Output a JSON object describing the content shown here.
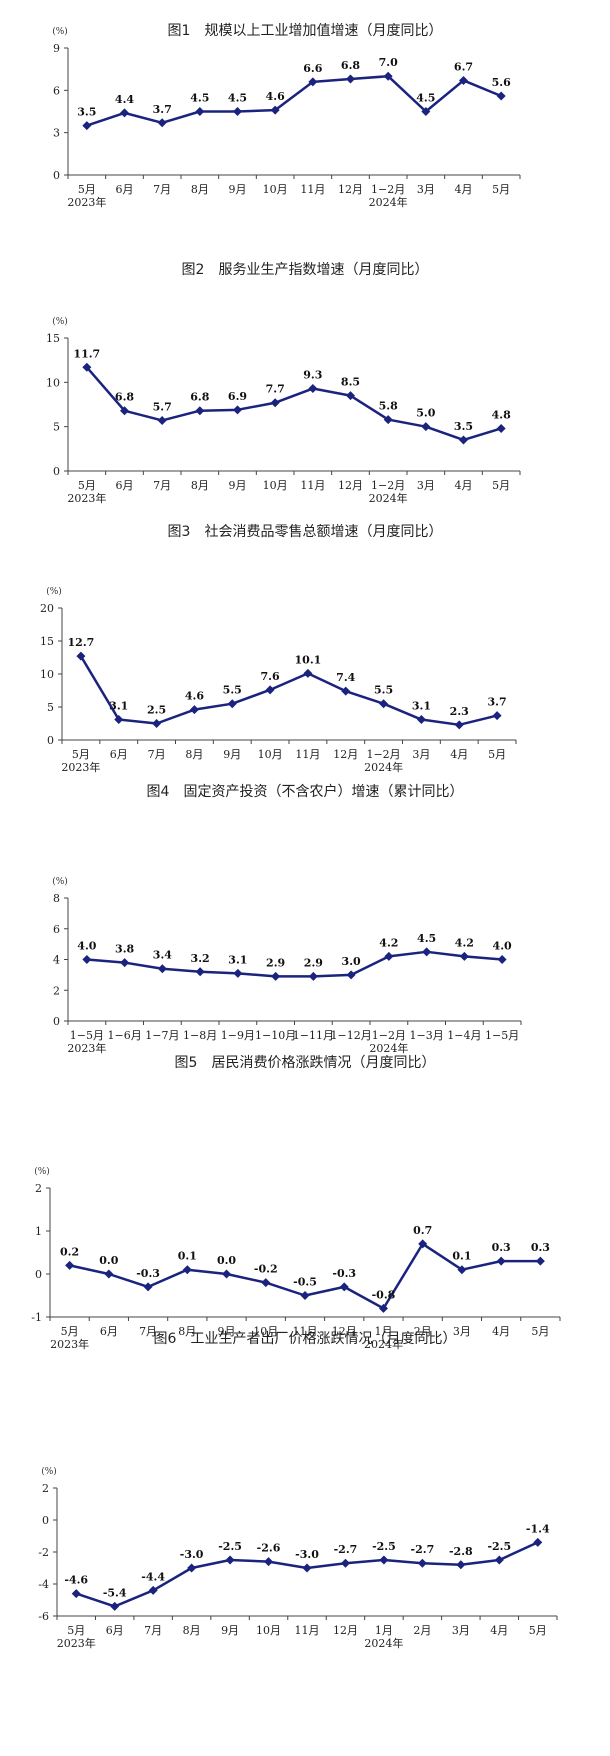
{
  "chart_data": [
    {
      "type": "line",
      "title": "图1　规模以上工业增加值增速（月度同比）",
      "unit": "(%)",
      "categories": [
        "5月",
        "6月",
        "7月",
        "8月",
        "9月",
        "10月",
        "11月",
        "12月",
        "1−2月",
        "3月",
        "4月",
        "5月"
      ],
      "year_labels": [
        {
          "text": "2023年",
          "category_index": 0
        },
        {
          "text": "2024年",
          "category_index": 8
        }
      ],
      "values": [
        3.5,
        4.4,
        3.7,
        4.5,
        4.5,
        4.6,
        6.6,
        6.8,
        7.0,
        4.5,
        6.7,
        5.6
      ],
      "value_labels": [
        "3.5",
        "4.4",
        "3.7",
        "4.5",
        "4.5",
        "4.6",
        "6.6",
        "6.8",
        "7.0",
        "4.5",
        "6.7",
        "5.6"
      ],
      "yticks": [
        0,
        3,
        6,
        9
      ],
      "ylim": [
        0,
        9
      ],
      "color": "#1a237e"
    },
    {
      "type": "line",
      "title": "图2　服务业生产指数增速（月度同比）",
      "unit": "(%)",
      "categories": [
        "5月",
        "6月",
        "7月",
        "8月",
        "9月",
        "10月",
        "11月",
        "12月",
        "1−2月",
        "3月",
        "4月",
        "5月"
      ],
      "year_labels": [
        {
          "text": "2023年",
          "category_index": 0
        },
        {
          "text": "2024年",
          "category_index": 8
        }
      ],
      "values": [
        11.7,
        6.8,
        5.7,
        6.8,
        6.9,
        7.7,
        9.3,
        8.5,
        5.8,
        5.0,
        3.5,
        4.8
      ],
      "value_labels": [
        "11.7",
        "6.8",
        "5.7",
        "6.8",
        "6.9",
        "7.7",
        "9.3",
        "8.5",
        "5.8",
        "5.0",
        "3.5",
        "4.8"
      ],
      "yticks": [
        0,
        5,
        10,
        15
      ],
      "ylim": [
        0,
        15
      ],
      "color": "#1a237e"
    },
    {
      "type": "line",
      "title": "图3　社会消费品零售总额增速（月度同比）",
      "unit": "(%)",
      "categories": [
        "5月",
        "6月",
        "7月",
        "8月",
        "9月",
        "10月",
        "11月",
        "12月",
        "1−2月",
        "3月",
        "4月",
        "5月"
      ],
      "year_labels": [
        {
          "text": "2023年",
          "category_index": 0
        },
        {
          "text": "2024年",
          "category_index": 8
        }
      ],
      "values": [
        12.7,
        3.1,
        2.5,
        4.6,
        5.5,
        7.6,
        10.1,
        7.4,
        5.5,
        3.1,
        2.3,
        3.7
      ],
      "value_labels": [
        "12.7",
        "3.1",
        "2.5",
        "4.6",
        "5.5",
        "7.6",
        "10.1",
        "7.4",
        "5.5",
        "3.1",
        "2.3",
        "3.7"
      ],
      "yticks": [
        0,
        5,
        10,
        15,
        20
      ],
      "ylim": [
        0,
        20
      ],
      "color": "#1a237e"
    },
    {
      "type": "line",
      "title": "图4　固定资产投资（不含农户）增速（累计同比）",
      "unit": "(%)",
      "categories": [
        "1−5月",
        "1−6月",
        "1−7月",
        "1−8月",
        "1−9月",
        "1−10月",
        "1−11月",
        "1−12月",
        "1−2月",
        "1−3月",
        "1−4月",
        "1−5月"
      ],
      "year_labels": [
        {
          "text": "2023年",
          "category_index": 0
        },
        {
          "text": "2024年",
          "category_index": 8
        }
      ],
      "values": [
        4.0,
        3.8,
        3.4,
        3.2,
        3.1,
        2.9,
        2.9,
        3.0,
        4.2,
        4.5,
        4.2,
        4.0
      ],
      "value_labels": [
        "4.0",
        "3.8",
        "3.4",
        "3.2",
        "3.1",
        "2.9",
        "2.9",
        "3.0",
        "4.2",
        "4.5",
        "4.2",
        "4.0"
      ],
      "yticks": [
        0,
        2,
        4,
        6,
        8
      ],
      "ylim": [
        0,
        8
      ],
      "color": "#1a237e"
    },
    {
      "type": "line",
      "title": "图5　居民消费价格涨跌情况（月度同比）",
      "unit": "(%)",
      "categories": [
        "5月",
        "6月",
        "7月",
        "8月",
        "9月",
        "10月",
        "11月",
        "12月",
        "1月",
        "2月",
        "3月",
        "4月",
        "5月"
      ],
      "year_labels": [
        {
          "text": "2023年",
          "category_index": 0
        },
        {
          "text": "2024年",
          "category_index": 8
        }
      ],
      "values": [
        0.2,
        0.0,
        -0.3,
        0.1,
        0.0,
        -0.2,
        -0.5,
        -0.3,
        -0.8,
        0.7,
        0.1,
        0.3,
        0.3
      ],
      "value_labels": [
        "0.2",
        "0.0",
        "-0.3",
        "0.1",
        "0.0",
        "-0.2",
        "-0.5",
        "-0.3",
        "-0.8",
        "0.7",
        "0.1",
        "0.3",
        "0.3"
      ],
      "yticks": [
        -1,
        0,
        1,
        2
      ],
      "ylim": [
        -1,
        2
      ],
      "color": "#1a237e"
    },
    {
      "type": "line",
      "title": "图6　工业生产者出厂价格涨跌情况（月度同比）",
      "unit": "(%)",
      "categories": [
        "5月",
        "6月",
        "7月",
        "8月",
        "9月",
        "10月",
        "11月",
        "12月",
        "1月",
        "2月",
        "3月",
        "4月",
        "5月"
      ],
      "year_labels": [
        {
          "text": "2023年",
          "category_index": 0
        },
        {
          "text": "2024年",
          "category_index": 8
        }
      ],
      "values": [
        -4.6,
        -5.4,
        -4.4,
        -3.0,
        -2.5,
        -2.6,
        -3.0,
        -2.7,
        -2.5,
        -2.7,
        -2.8,
        -2.5,
        -1.4
      ],
      "value_labels": [
        "-4.6",
        "-5.4",
        "-4.4",
        "-3.0",
        "-2.5",
        "-2.6",
        "-3.0",
        "-2.7",
        "-2.5",
        "-2.7",
        "-2.8",
        "-2.5",
        "-1.4"
      ],
      "yticks": [
        -6,
        -4,
        -2,
        0,
        2
      ],
      "ylim": [
        -6,
        2
      ],
      "color": "#1a237e"
    }
  ]
}
